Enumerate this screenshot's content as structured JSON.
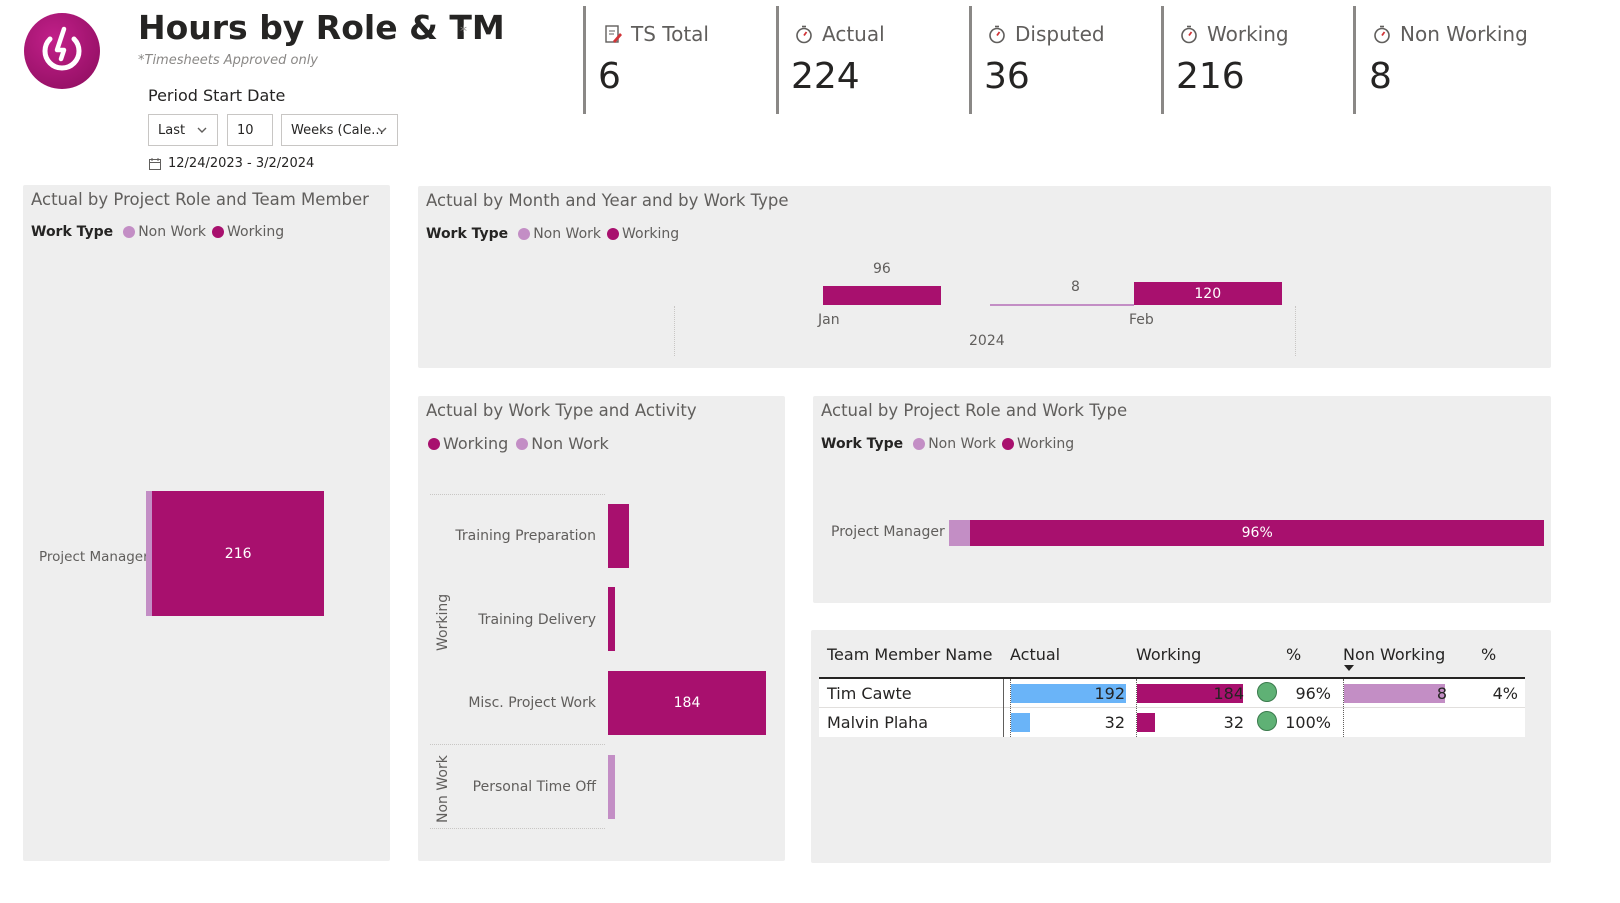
{
  "header": {
    "title": "Hours by Role & TM",
    "title_marker": "*",
    "subtitle": "*Timesheets Approved only",
    "logo_icon": "power-icon",
    "brand_color": "#a8106e"
  },
  "filter": {
    "label": "Period Start Date",
    "mode": "Last",
    "count": "10",
    "unit": "Weeks (Cale...",
    "date_range": "12/24/2023 - 3/2/2024"
  },
  "kpis": [
    {
      "label": "TS Total",
      "value": "6",
      "icon": "edit-document-icon"
    },
    {
      "label": "Actual",
      "value": "224",
      "icon": "stopwatch-icon"
    },
    {
      "label": "Disputed",
      "value": "36",
      "icon": "stopwatch-icon"
    },
    {
      "label": "Working",
      "value": "216",
      "icon": "stopwatch-icon"
    },
    {
      "label": "Non Working",
      "value": "8",
      "icon": "stopwatch-icon"
    }
  ],
  "colors": {
    "working": "#a8106e",
    "non_work": "#c38ec5",
    "actual_bar": "#6ab4f8",
    "status_ok": "#5fb175",
    "panel": "#eeeeee"
  },
  "chart_data": [
    {
      "id": "role-member",
      "type": "bar",
      "title": "Actual by Project Role and Team Member",
      "legend_title": "Work Type",
      "legend": [
        "Non Work",
        "Working"
      ],
      "categories": [
        "Project Manager"
      ],
      "series": [
        {
          "name": "Non Work",
          "values": [
            8
          ]
        },
        {
          "name": "Working",
          "values": [
            216
          ]
        }
      ],
      "labels": [
        "216"
      ]
    },
    {
      "id": "month-worktype",
      "type": "bar",
      "title": "Actual by Month and Year and by Work Type",
      "legend_title": "Work Type",
      "legend": [
        "Non Work",
        "Working"
      ],
      "categories": [
        "Jan",
        "Feb"
      ],
      "year": "2024",
      "series": [
        {
          "name": "Non Work",
          "values": [
            0,
            8
          ]
        },
        {
          "name": "Working",
          "values": [
            96,
            120
          ]
        }
      ],
      "labels": {
        "jan_working": "96",
        "feb_nonwork": "8",
        "feb_working": "120"
      }
    },
    {
      "id": "worktype-activity",
      "type": "bar",
      "title": "Actual by Work Type and Activity",
      "legend": [
        "Working",
        "Non Work"
      ],
      "groups": [
        "Working",
        "Non Work"
      ],
      "categories": [
        "Training Preparation",
        "Training Delivery",
        "Misc. Project Work",
        "Personal Time Off"
      ],
      "values": [
        24,
        8,
        184,
        8
      ],
      "labels": [
        "",
        "",
        "184",
        ""
      ]
    },
    {
      "id": "role-worktype",
      "type": "bar",
      "title": "Actual by Project Role and Work Type",
      "legend_title": "Work Type",
      "legend": [
        "Non Work",
        "Working"
      ],
      "categories": [
        "Project Manager"
      ],
      "series": [
        {
          "name": "Non Work",
          "values": [
            4
          ]
        },
        {
          "name": "Working",
          "values": [
            96
          ]
        }
      ],
      "labels": [
        "96%"
      ]
    },
    {
      "id": "member-table",
      "type": "table",
      "columns": [
        "Team Member Name",
        "Actual",
        "Working",
        "%",
        "Non Working",
        "%"
      ],
      "rows": [
        {
          "name": "Tim Cawte",
          "actual": 192,
          "working": 184,
          "working_pct": "96%",
          "non_working": 8,
          "non_working_pct": "4%"
        },
        {
          "name": "Malvin Plaha",
          "actual": 32,
          "working": 32,
          "working_pct": "100%",
          "non_working": null,
          "non_working_pct": ""
        }
      ]
    }
  ],
  "text": {
    "p1_title": "Actual by Project Role and Team Member",
    "p2_title": "Actual by Month and Year and by Work Type",
    "p3_title": "Actual by Work Type and Activity",
    "p4_title": "Actual by Project Role and Work Type",
    "legend_title": "Work Type",
    "non_work": "Non Work",
    "working": "Working",
    "project_manager": "Project Manager",
    "jan": "Jan",
    "feb": "Feb",
    "year": "2024",
    "lbl_96": "96",
    "lbl_8": "8",
    "lbl_120": "120",
    "lbl_216": "216",
    "lbl_184": "184",
    "lbl_96pct": "96%",
    "act_training_prep": "Training Preparation",
    "act_training_delivery": "Training Delivery",
    "act_misc": "Misc. Project Work",
    "act_pto": "Personal Time Off",
    "grp_working": "Working",
    "grp_nonwork": "Non Work",
    "th_name": "Team Member Name",
    "th_actual": "Actual",
    "th_working": "Working",
    "th_pct1": "%",
    "th_nonworking": "Non Working",
    "th_pct2": "%",
    "r1_name": "Tim Cawte",
    "r1_actual": "192",
    "r1_working": "184",
    "r1_wpct": "96%",
    "r1_nonworking": "8",
    "r1_npct": "4%",
    "r2_name": "Malvin Plaha",
    "r2_actual": "32",
    "r2_working": "32",
    "r2_wpct": "100%"
  }
}
